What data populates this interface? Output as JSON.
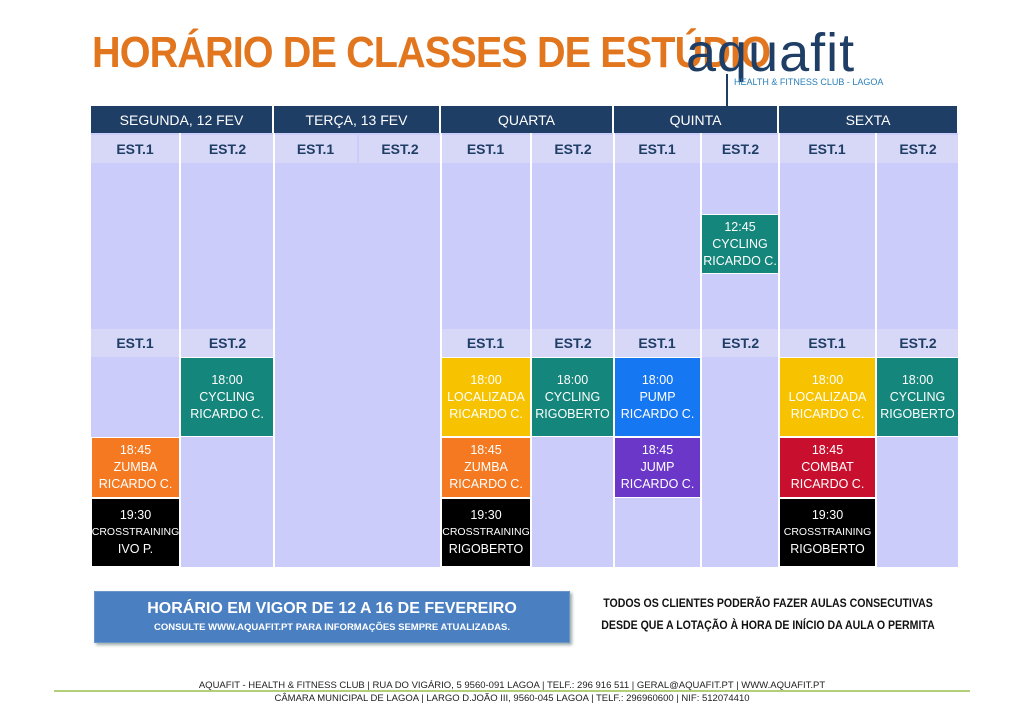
{
  "title": "HORÁRIO DE CLASSES DE ESTÚDIO",
  "logo": {
    "name": "aquafit",
    "tagline": "HEALTH & FITNESS CLUB - LAGOA"
  },
  "days": [
    "SEGUNDA, 12 FEV",
    "TERÇA, 13 FEV",
    "QUARTA",
    "QUINTA",
    "SEXTA"
  ],
  "studios": {
    "est1": "EST.1",
    "est2": "EST.2"
  },
  "classes": [
    {
      "day": "QUINTA",
      "studio": "EST.2",
      "time": "12:45",
      "name": "CYCLING",
      "instructor": "RICARDO C.",
      "color": "#14867b"
    },
    {
      "day": "SEGUNDA, 12 FEV",
      "studio": "EST.2",
      "time": "18:00",
      "name": "CYCLING",
      "instructor": "RICARDO C.",
      "color": "#14867b"
    },
    {
      "day": "SEGUNDA, 12 FEV",
      "studio": "EST.1",
      "time": "18:45",
      "name": "ZUMBA",
      "instructor": "RICARDO C.",
      "color": "#f47920"
    },
    {
      "day": "SEGUNDA, 12 FEV",
      "studio": "EST.1",
      "time": "19:30",
      "name": "CROSSTRAINING",
      "instructor": "IVO P.",
      "color": "#000000"
    },
    {
      "day": "QUARTA",
      "studio": "EST.1",
      "time": "18:00",
      "name": "LOCALIZADA",
      "instructor": "RICARDO C.",
      "color": "#f7c300"
    },
    {
      "day": "QUARTA",
      "studio": "EST.2",
      "time": "18:00",
      "name": "CYCLING",
      "instructor": "RIGOBERTO",
      "color": "#14867b"
    },
    {
      "day": "QUARTA",
      "studio": "EST.1",
      "time": "18:45",
      "name": "ZUMBA",
      "instructor": "RICARDO C.",
      "color": "#f47920"
    },
    {
      "day": "QUARTA",
      "studio": "EST.1",
      "time": "19:30",
      "name": "CROSSTRAINING",
      "instructor": "RIGOBERTO",
      "color": "#000000"
    },
    {
      "day": "QUINTA",
      "studio": "EST.1",
      "time": "18:00",
      "name": "PUMP",
      "instructor": "RICARDO C.",
      "color": "#1677f2"
    },
    {
      "day": "QUINTA",
      "studio": "EST.1",
      "time": "18:45",
      "name": "JUMP",
      "instructor": "RICARDO C.",
      "color": "#6a37c8"
    },
    {
      "day": "SEXTA",
      "studio": "EST.1",
      "time": "18:00",
      "name": "LOCALIZADA",
      "instructor": "RICARDO C.",
      "color": "#f7c300"
    },
    {
      "day": "SEXTA",
      "studio": "EST.2",
      "time": "18:00",
      "name": "CYCLING",
      "instructor": "RIGOBERTO",
      "color": "#14867b"
    },
    {
      "day": "SEXTA",
      "studio": "EST.1",
      "time": "18:45",
      "name": "COMBAT",
      "instructor": "RICARDO C.",
      "color": "#c8102e"
    },
    {
      "day": "SEXTA",
      "studio": "EST.1",
      "time": "19:30",
      "name": "CROSSTRAINING",
      "instructor": "RIGOBERTO",
      "color": "#000000"
    }
  ],
  "banner": {
    "main": "HORÁRIO EM VIGOR  DE 12 A 16 DE FEVEREIRO",
    "sub": "CONSULTE WWW.AQUAFIT.PT PARA INFORMAÇÕES SEMPRE ATUALIZADAS."
  },
  "notice": {
    "line1": "TODOS OS CLIENTES PODERÃO FAZER AULAS CONSECUTIVAS",
    "line2": "DESDE QUE A LOTAÇÃO À HORA DE INÍCIO DA AULA O PERMITA"
  },
  "footer": {
    "line1": "AQUAFIT - HEALTH & FITNESS CLUB | RUA DO VIGÁRIO, 5 9560-091 LAGOA | TELF.: 296 916 511 | GERAL@AQUAFIT.PT | WWW.AQUAFIT.PT",
    "line2": "CÂMARA MUNICIPAL DE LAGOA | LARGO D.JOÃO III, 9560-045 LAGOA | TELF.: 296960600 | NIF: 512074410"
  },
  "colors": {
    "header": "#1f3e66",
    "title": "#e2761e",
    "grid": "#ccccfb",
    "est_row": "#d7d8f7"
  }
}
